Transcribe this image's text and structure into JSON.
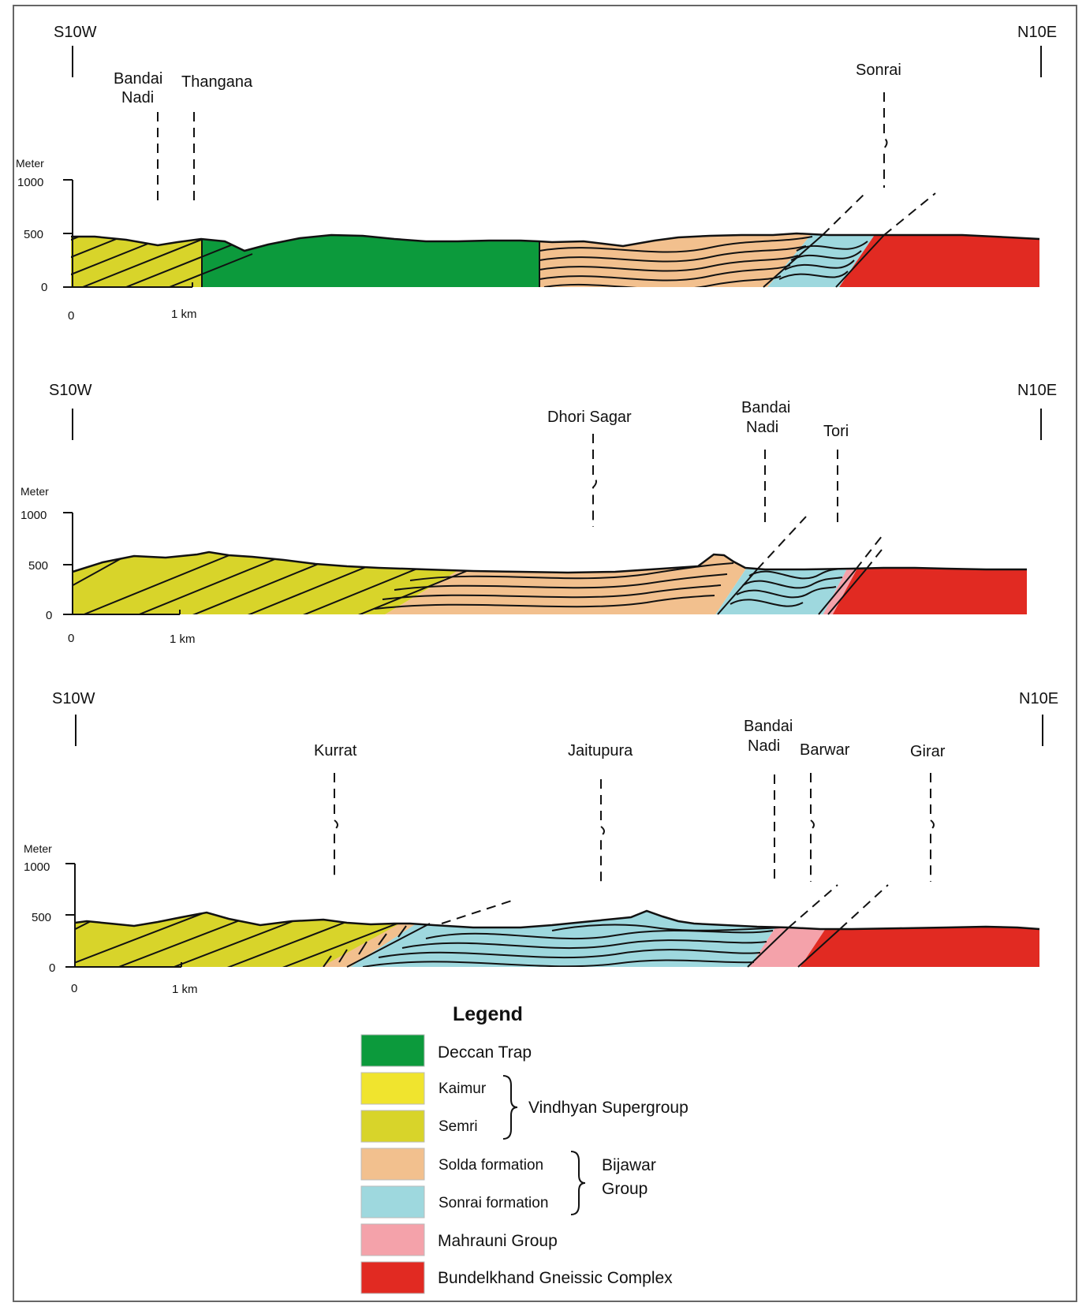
{
  "sections": [
    {
      "dir_left": "S10W",
      "dir_right": "N10E",
      "meter_label": "Meter",
      "y_ticks": [
        "1000",
        "500",
        "0"
      ],
      "x_ticks": [
        "0",
        "1 km"
      ],
      "places": [
        {
          "lines": [
            "Bandai",
            "Nadi"
          ]
        },
        {
          "lines": [
            "Thangana"
          ]
        },
        {
          "lines": [
            "Sonrai"
          ]
        }
      ]
    },
    {
      "dir_left": "S10W",
      "dir_right": "N10E",
      "meter_label": "Meter",
      "y_ticks": [
        "1000",
        "500",
        "0"
      ],
      "x_ticks": [
        "0",
        "1 km"
      ],
      "places": [
        {
          "lines": [
            "Dhori Sagar"
          ]
        },
        {
          "lines": [
            "Bandai",
            "Nadi"
          ]
        },
        {
          "lines": [
            "Tori"
          ]
        }
      ]
    },
    {
      "dir_left": "S10W",
      "dir_right": "N10E",
      "meter_label": "Meter",
      "y_ticks": [
        "1000",
        "500",
        "0"
      ],
      "x_ticks": [
        "0",
        "1 km"
      ],
      "places": [
        {
          "lines": [
            "Kurrat"
          ]
        },
        {
          "lines": [
            "Jaitupura"
          ]
        },
        {
          "lines": [
            "Bandai",
            "Nadi"
          ]
        },
        {
          "lines": [
            "Barwar"
          ]
        },
        {
          "lines": [
            "Girar"
          ]
        }
      ]
    }
  ],
  "legend": {
    "title": "Legend",
    "items": [
      {
        "label": "Deccan Trap",
        "color": "#0c9a3c"
      },
      {
        "label": "Kaimur",
        "color": "#f0e42e"
      },
      {
        "label": "Semri",
        "color": "#d8d42a"
      },
      {
        "label": "Solda formation",
        "color": "#f2c08e"
      },
      {
        "label": "Sonrai formation",
        "color": "#9ed8de"
      },
      {
        "label": "Mahrauni Group",
        "color": "#f4a2aa"
      },
      {
        "label": "Bundelkhand Gneissic Complex",
        "color": "#e12a22"
      }
    ],
    "groups": [
      {
        "lines": [
          "Vindhyan Supergroup"
        ]
      },
      {
        "lines": [
          "Bijawar",
          "Group"
        ]
      }
    ]
  },
  "colors": {
    "deccan": "#0c9a3c",
    "kaimur": "#f0e42e",
    "semri": "#d8d42a",
    "solda": "#f2c08e",
    "sonrai": "#9ed8de",
    "mahrauni": "#f4a2aa",
    "bundelkhand": "#e12a22"
  }
}
